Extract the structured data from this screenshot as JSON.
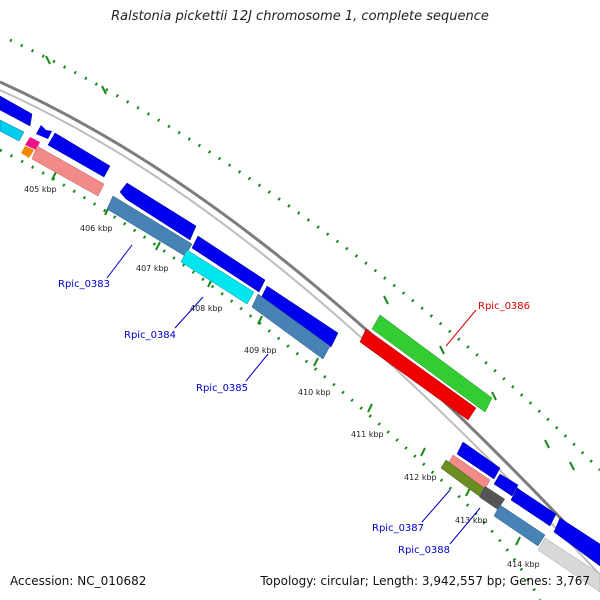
{
  "title": "Ralstonia pickettii 12J chromosome 1, complete sequence",
  "footer": {
    "accession": "Accession: NC_010682",
    "stats": "Topology: circular; Length: 3,942,557 bp; Genes: 3,767"
  },
  "tick_labels": [
    "405 kbp",
    "406 kbp",
    "407 kbp",
    "408 kbp",
    "409 kbp",
    "410 kbp",
    "411 kbp",
    "412 kbp",
    "413 kbp",
    "414 kbp"
  ],
  "gene_labels": [
    {
      "text": "Rpic_0383",
      "color": "#0000cc"
    },
    {
      "text": "Rpic_0384",
      "color": "#0000cc"
    },
    {
      "text": "Rpic_0385",
      "color": "#0000cc"
    },
    {
      "text": "Rpic_0386",
      "color": "#dd0000"
    },
    {
      "text": "Rpic_0387",
      "color": "#0000cc"
    },
    {
      "text": "Rpic_0388",
      "color": "#0000cc"
    }
  ],
  "colors": {
    "backbone": "#888888",
    "tick": "#1a8a1a",
    "forward_gene": "#0000ee",
    "steelblue": "#4682b4",
    "cyan": "#00e5ee",
    "salmon": "#f08080",
    "red": "#ee0000",
    "green": "#33cc33",
    "olive": "#6b8e23",
    "gray": "#666666",
    "lightgray": "#d8d8d8"
  }
}
